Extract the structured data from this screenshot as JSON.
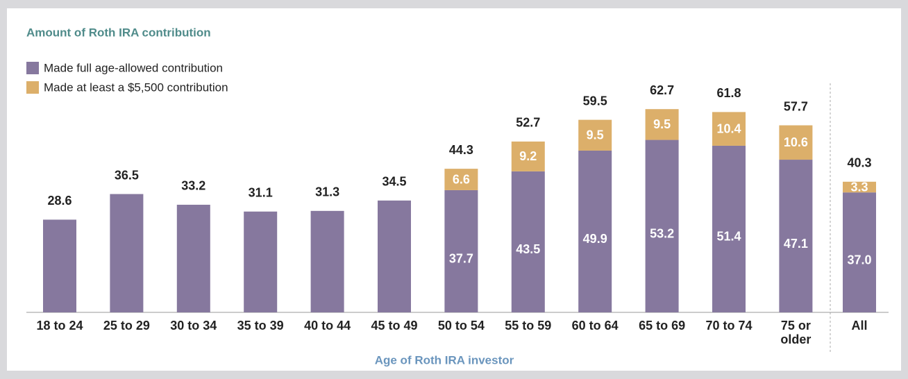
{
  "chart_data": {
    "type": "bar",
    "stacked": true,
    "title": "Amount of Roth IRA contribution",
    "x_label": "Age of Roth IRA investor",
    "categories": [
      "18 to 24",
      "25 to 29",
      "30 to 34",
      "35 to 39",
      "40 to 44",
      "45 to 49",
      "50 to 54",
      "55 to 59",
      "60 to 64",
      "65 to 69",
      "70 to 74",
      "75 or older",
      "All"
    ],
    "series": [
      {
        "name": "Made full age-allowed contribution",
        "color": "#86789e",
        "values": [
          28.6,
          36.5,
          33.2,
          31.1,
          31.3,
          34.5,
          37.7,
          43.5,
          49.9,
          53.2,
          51.4,
          47.1,
          37.0
        ],
        "value_labels": [
          "28.6",
          "36.5",
          "33.2",
          "31.1",
          "31.3",
          "34.5",
          "37.7",
          "43.5",
          "49.9",
          "53.2",
          "51.4",
          "47.1",
          "37.0"
        ]
      },
      {
        "name": "Made at least a $5,500 contribution",
        "color": "#dcaf6a",
        "values": [
          null,
          null,
          null,
          null,
          null,
          null,
          6.6,
          9.2,
          9.5,
          9.5,
          10.4,
          10.6,
          3.3
        ]
      }
    ],
    "totals": [
      null,
      null,
      null,
      null,
      null,
      null,
      44.3,
      52.7,
      59.5,
      62.7,
      61.8,
      57.7,
      40.3
    ]
  }
}
